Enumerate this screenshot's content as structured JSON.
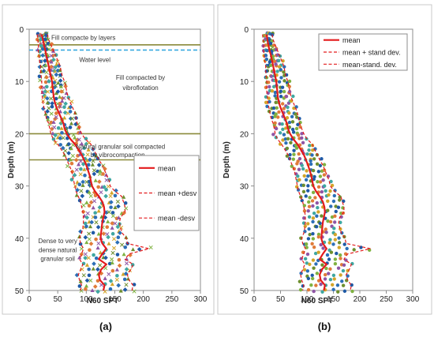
{
  "chart_data": [
    {
      "type": "scatter",
      "panel_label": "(a)",
      "xlabel": "N60  SPT",
      "ylabel": "Depth (m)",
      "xlim": [
        0,
        300
      ],
      "ylim": [
        0,
        50
      ],
      "y_inverted": true,
      "x_axis_position": "top",
      "xticks": [
        0,
        50,
        100,
        150,
        200,
        250,
        300
      ],
      "yticks": [
        0,
        10,
        20,
        30,
        40,
        50
      ],
      "grid": false,
      "legend": {
        "placement": "right-center",
        "entries": [
          "mean",
          "mean +desv",
          "mean -desv"
        ]
      },
      "layer_lines": [
        {
          "depth": 3,
          "color": "#8a8a3a",
          "style": "solid"
        },
        {
          "depth": 4,
          "color": "#39a9e0",
          "style": "dashed"
        },
        {
          "depth": 20,
          "color": "#8a8a3a",
          "style": "solid"
        },
        {
          "depth": 25,
          "color": "#8a8a3a",
          "style": "solid"
        }
      ],
      "annotations": [
        {
          "text": "Fill compacte by layers",
          "x": 95,
          "y": 1.6
        },
        {
          "text": "Water level",
          "x": 115,
          "y": 5.8
        },
        {
          "text": "Fill compacted by",
          "x": 195,
          "y": 9.2
        },
        {
          "text": "vibroflotation",
          "x": 195,
          "y": 11.2
        },
        {
          "text": "Natural granular soil compacted",
          "x": 160,
          "y": 22.4
        },
        {
          "text": "by vibrocompaction",
          "x": 155,
          "y": 24.0
        },
        {
          "text": "Dense to very",
          "x": 50,
          "y": 40.5
        },
        {
          "text": "dense natural",
          "x": 50,
          "y": 42.2
        },
        {
          "text": "granular soil",
          "x": 50,
          "y": 43.9
        }
      ],
      "series": [
        {
          "name": "mean",
          "color": "#e31a1c",
          "style": "solid",
          "y": [
            1,
            2,
            3,
            4,
            5,
            6,
            7,
            8,
            9,
            10,
            11,
            12,
            13,
            14,
            15,
            16,
            17,
            18,
            19,
            20,
            21,
            22,
            23,
            24,
            25,
            26,
            27,
            28,
            29,
            30,
            31,
            32,
            33,
            34,
            35,
            36,
            37,
            38,
            39,
            40,
            41,
            42,
            43,
            44,
            45,
            46,
            47,
            48,
            49,
            50
          ],
          "x": [
            22,
            24,
            26,
            28,
            30,
            32,
            34,
            36,
            38,
            40,
            41,
            42,
            43,
            45,
            48,
            52,
            56,
            60,
            62,
            66,
            72,
            80,
            86,
            92,
            96,
            100,
            103,
            106,
            108,
            110,
            115,
            122,
            128,
            131,
            132,
            130,
            128,
            127,
            126,
            125,
            128,
            135,
            128,
            122,
            135,
            126,
            122,
            124,
            132,
            130
          ]
        },
        {
          "name": "mean +desv",
          "color": "#e31a1c",
          "style": "dashed",
          "y": [
            1,
            2,
            3,
            4,
            5,
            6,
            7,
            8,
            9,
            10,
            11,
            12,
            13,
            14,
            15,
            16,
            17,
            18,
            19,
            20,
            21,
            22,
            23,
            24,
            25,
            26,
            27,
            28,
            29,
            30,
            31,
            32,
            33,
            34,
            35,
            36,
            37,
            38,
            39,
            40,
            41,
            42,
            43,
            44,
            45,
            46,
            47,
            48,
            49,
            50
          ],
          "x": [
            32,
            34,
            38,
            42,
            46,
            50,
            54,
            56,
            58,
            62,
            64,
            66,
            68,
            72,
            76,
            80,
            82,
            84,
            88,
            92,
            98,
            108,
            112,
            118,
            122,
            128,
            132,
            136,
            140,
            142,
            150,
            162,
            165,
            168,
            168,
            160,
            158,
            160,
            163,
            170,
            172,
            210,
            175,
            168,
            182,
            178,
            172,
            175,
            182,
            180
          ]
        },
        {
          "name": "mean -desv",
          "color": "#e31a1c",
          "style": "dashed",
          "y": [
            1,
            2,
            3,
            4,
            5,
            6,
            7,
            8,
            9,
            10,
            11,
            12,
            13,
            14,
            15,
            16,
            17,
            18,
            19,
            20,
            21,
            22,
            23,
            24,
            25,
            26,
            27,
            28,
            29,
            30,
            31,
            32,
            33,
            34,
            35,
            36,
            37,
            38,
            39,
            40,
            41,
            42,
            43,
            44,
            45,
            46,
            47,
            48,
            49,
            50
          ],
          "x": [
            14,
            15,
            16,
            16,
            17,
            18,
            20,
            20,
            21,
            22,
            22,
            22,
            23,
            24,
            26,
            28,
            30,
            34,
            36,
            38,
            42,
            50,
            56,
            62,
            66,
            70,
            74,
            76,
            78,
            80,
            82,
            86,
            90,
            92,
            94,
            95,
            95,
            94,
            92,
            88,
            90,
            95,
            92,
            88,
            94,
            90,
            86,
            88,
            92,
            90
          ]
        }
      ]
    },
    {
      "type": "scatter",
      "panel_label": "(b)",
      "xlabel": "N60  SPT",
      "ylabel": "Depth (m)",
      "xlim": [
        0,
        300
      ],
      "ylim": [
        0,
        50
      ],
      "y_inverted": true,
      "x_axis_position": "top",
      "xticks": [
        0,
        50,
        100,
        150,
        200,
        250,
        300
      ],
      "yticks": [
        0,
        10,
        20,
        30,
        40,
        50
      ],
      "grid": false,
      "legend": {
        "placement": "top-right",
        "entries": [
          "mean",
          "mean + stand dev.",
          "mean-stand. dev."
        ]
      },
      "series": [
        {
          "name": "mean",
          "color": "#e31a1c",
          "style": "solid",
          "y": [
            1,
            2,
            3,
            4,
            5,
            6,
            7,
            8,
            9,
            10,
            11,
            12,
            13,
            14,
            15,
            16,
            17,
            18,
            19,
            20,
            21,
            22,
            23,
            24,
            25,
            26,
            27,
            28,
            29,
            30,
            31,
            32,
            33,
            34,
            35,
            36,
            37,
            38,
            39,
            40,
            41,
            42,
            43,
            44,
            45,
            46,
            47,
            48,
            49,
            50
          ],
          "x": [
            24,
            25,
            27,
            29,
            32,
            34,
            36,
            38,
            40,
            42,
            43,
            44,
            45,
            47,
            50,
            54,
            58,
            62,
            64,
            68,
            74,
            82,
            88,
            94,
            98,
            102,
            105,
            108,
            110,
            112,
            117,
            124,
            130,
            133,
            134,
            132,
            130,
            129,
            128,
            127,
            130,
            137,
            130,
            124,
            137,
            128,
            124,
            126,
            134,
            132
          ]
        },
        {
          "name": "mean + stand dev.",
          "color": "#e31a1c",
          "style": "dashed",
          "y": [
            1,
            2,
            3,
            4,
            5,
            6,
            7,
            8,
            9,
            10,
            11,
            12,
            13,
            14,
            15,
            16,
            17,
            18,
            19,
            20,
            21,
            22,
            23,
            24,
            25,
            26,
            27,
            28,
            29,
            30,
            31,
            32,
            33,
            34,
            35,
            36,
            37,
            38,
            39,
            40,
            41,
            42,
            43,
            44,
            45,
            46,
            47,
            48,
            49,
            50
          ],
          "x": [
            34,
            36,
            40,
            44,
            48,
            52,
            56,
            58,
            60,
            64,
            66,
            68,
            70,
            74,
            78,
            82,
            84,
            86,
            90,
            94,
            100,
            110,
            114,
            120,
            124,
            130,
            134,
            138,
            142,
            144,
            152,
            164,
            167,
            170,
            170,
            162,
            160,
            162,
            165,
            172,
            174,
            220,
            177,
            170,
            184,
            180,
            174,
            177,
            184,
            182
          ]
        },
        {
          "name": "mean-stand. dev.",
          "color": "#e31a1c",
          "style": "dashed",
          "y": [
            1,
            2,
            3,
            4,
            5,
            6,
            7,
            8,
            9,
            10,
            11,
            12,
            13,
            14,
            15,
            16,
            17,
            18,
            19,
            20,
            21,
            22,
            23,
            24,
            25,
            26,
            27,
            28,
            29,
            30,
            31,
            32,
            33,
            34,
            35,
            36,
            37,
            38,
            39,
            40,
            41,
            42,
            43,
            44,
            45,
            46,
            47,
            48,
            49,
            50
          ],
          "x": [
            16,
            17,
            18,
            18,
            19,
            20,
            22,
            22,
            23,
            24,
            24,
            24,
            25,
            26,
            28,
            30,
            32,
            36,
            38,
            40,
            44,
            52,
            58,
            64,
            68,
            72,
            76,
            78,
            80,
            82,
            84,
            88,
            92,
            94,
            96,
            97,
            97,
            96,
            94,
            90,
            92,
            97,
            94,
            90,
            96,
            92,
            88,
            90,
            94,
            92
          ]
        }
      ]
    }
  ]
}
